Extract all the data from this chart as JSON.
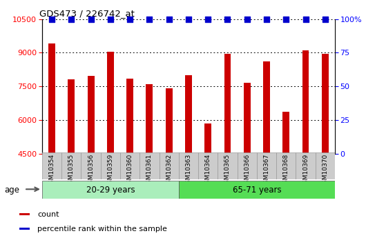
{
  "title": "GDS473 / 226742_at",
  "categories": [
    "GSM10354",
    "GSM10355",
    "GSM10356",
    "GSM10359",
    "GSM10360",
    "GSM10361",
    "GSM10362",
    "GSM10363",
    "GSM10364",
    "GSM10365",
    "GSM10366",
    "GSM10367",
    "GSM10368",
    "GSM10369",
    "GSM10370"
  ],
  "counts": [
    9400,
    7800,
    7950,
    9050,
    7850,
    7600,
    7400,
    8000,
    5850,
    8950,
    7650,
    8600,
    6350,
    9100,
    8950
  ],
  "bar_color": "#cc0000",
  "percentile_color": "#0000cc",
  "ylim_left": [
    4500,
    10500
  ],
  "ylim_right": [
    0,
    100
  ],
  "yticks_left": [
    4500,
    6000,
    7500,
    9000,
    10500
  ],
  "yticks_right": [
    0,
    25,
    50,
    75,
    100
  ],
  "ytick_labels_right": [
    "0",
    "25",
    "50",
    "75",
    "100%"
  ],
  "group1_label": "20-29 years",
  "group2_label": "65-71 years",
  "group1_count": 7,
  "group2_count": 8,
  "age_label": "age",
  "legend_count": "count",
  "legend_percentile": "percentile rank within the sample",
  "bar_width": 0.35,
  "group1_bg": "#aaeebb",
  "group2_bg": "#55dd55",
  "xlabel_area_bg": "#cccccc",
  "xlabel_border": "#999999"
}
